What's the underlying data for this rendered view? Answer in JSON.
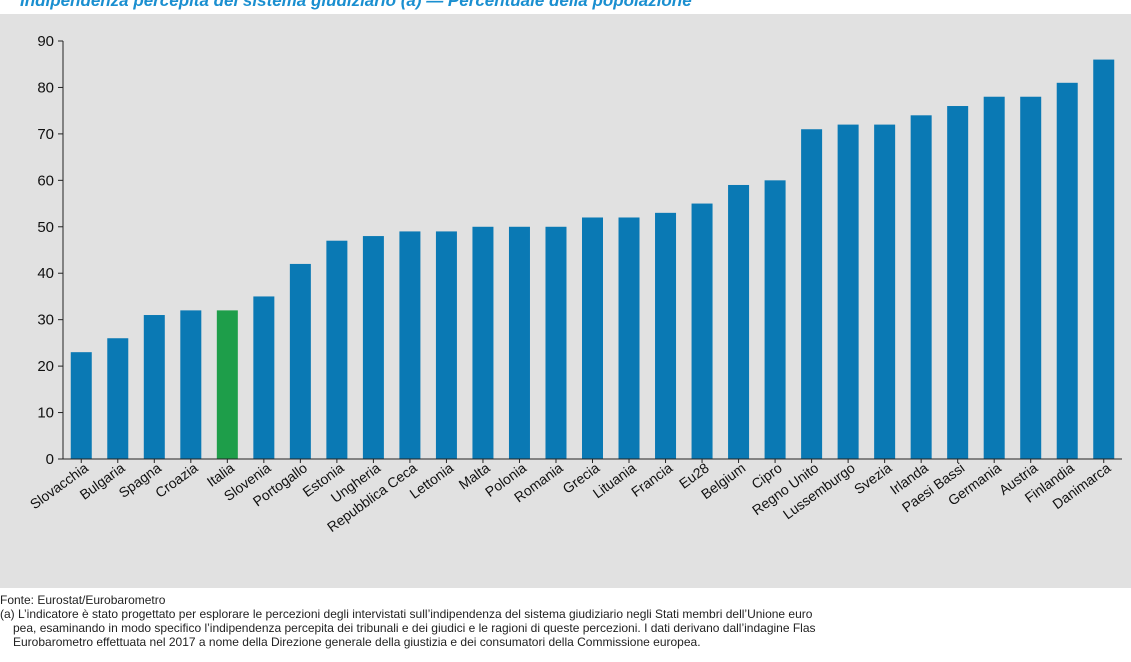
{
  "header": {
    "title": "Indipendenza percepita del sistema giudiziario (a) — Percentuale della popolazione"
  },
  "chart_data": {
    "type": "bar",
    "categories": [
      "Slovacchia",
      "Bulgaria",
      "Spagna",
      "Croazia",
      "Italia",
      "Slovenia",
      "Portogallo",
      "Estonia",
      "Ungheria",
      "Repubblica Ceca",
      "Lettonia",
      "Malta",
      "Polonia",
      "Romania",
      "Grecia",
      "Lituania",
      "Francia",
      "Eu28",
      "Belgium",
      "Cipro",
      "Regno Unito",
      "Lussemburgo",
      "Svezia",
      "Irlanda",
      "Paesi Bassi",
      "Germania",
      "Austria",
      "Finlandia",
      "Danimarca"
    ],
    "values": [
      23,
      26,
      31,
      32,
      32,
      35,
      42,
      47,
      48,
      49,
      49,
      50,
      50,
      50,
      52,
      52,
      53,
      55,
      59,
      60,
      71,
      72,
      72,
      74,
      76,
      78,
      78,
      81,
      86
    ],
    "highlight_category": "Italia",
    "colors": {
      "bar": "#0a79b4",
      "highlight": "#1e9e4a",
      "background": "#e1e1e1"
    },
    "ylim": [
      0,
      90
    ],
    "yticks": [
      0,
      10,
      20,
      30,
      40,
      50,
      60,
      70,
      80,
      90
    ],
    "grid": false,
    "legend": "none"
  },
  "footnotes": {
    "source": "Fonte: Eurostat/Eurobarometro",
    "note_line1": "(a) L’indicatore è stato progettato per esplorare le percezioni degli intervistati sull’indipendenza del sistema giudiziario negli Stati membri dell’Unione euro",
    "note_line2": "pea, esaminando in modo specifico l’indipendenza percepita dei tribunali e dei giudici e le ragioni di queste percezioni. I dati derivano dall’indagine Flas",
    "note_line3": "Eurobarometro effettuata nel 2017 a nome della Direzione generale della giustizia e dei consumatori della Commissione europea."
  }
}
